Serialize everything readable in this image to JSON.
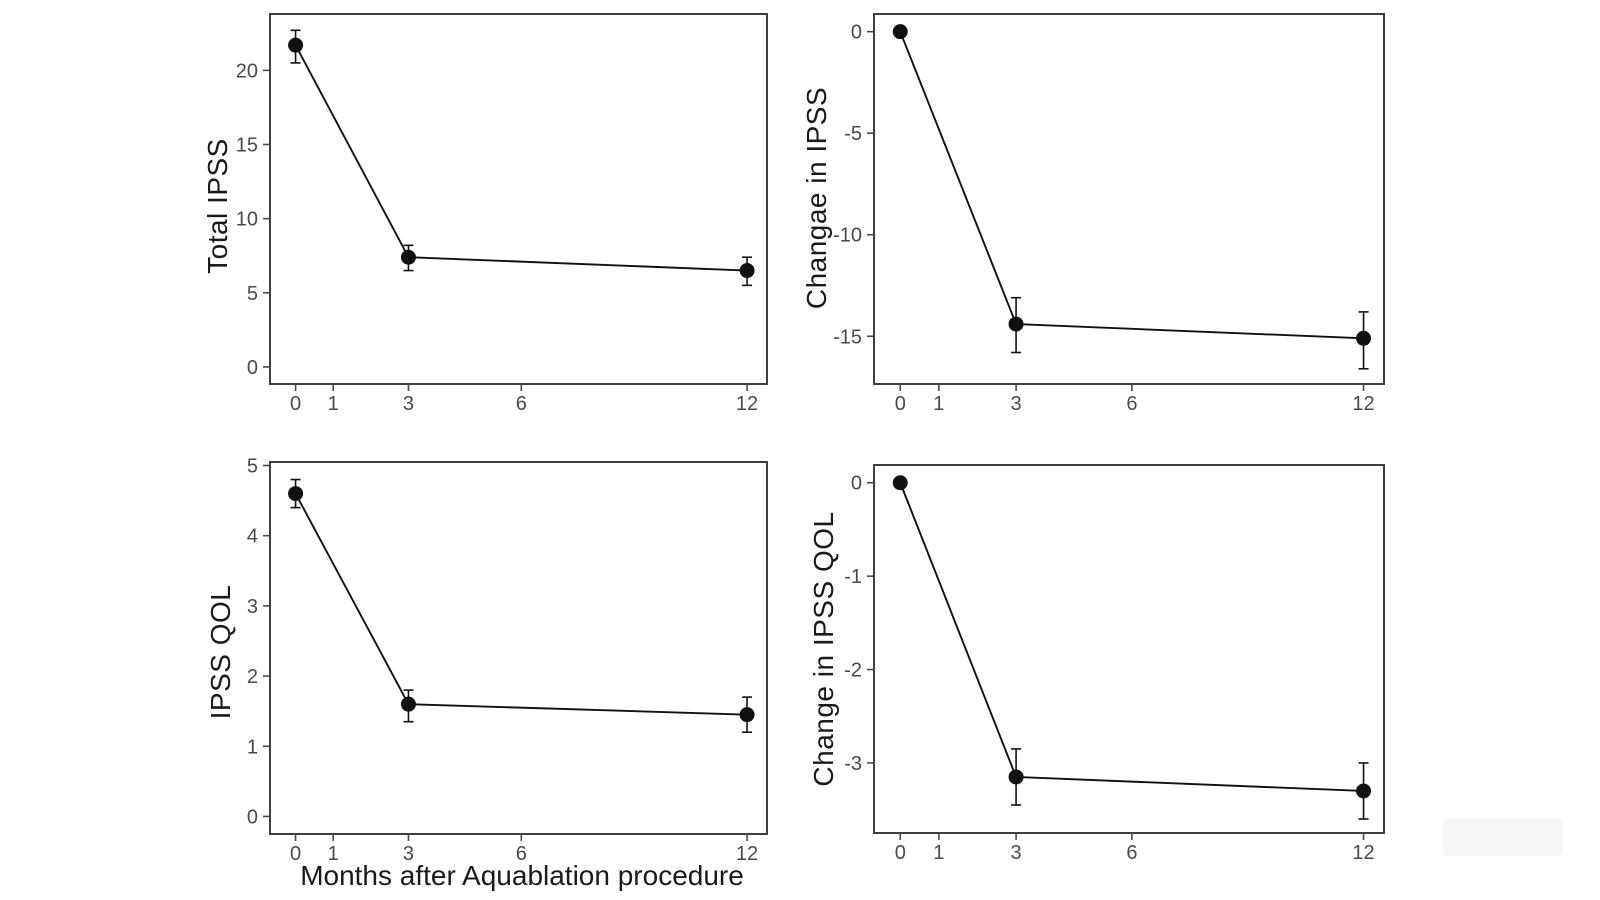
{
  "figure": {
    "background": "#ffffff",
    "ink_color": "#111111",
    "tick_color": "#4a4a4a",
    "border_color": "#3f3f3f",
    "label_color": "#1a1a1a",
    "xlabel": "Months after Aquablation procedure"
  },
  "chart_data": [
    {
      "type": "line",
      "title": "",
      "ylabel": "Total IPSS",
      "xlabel": "",
      "x": [
        0,
        3,
        12
      ],
      "values": [
        21.7,
        7.4,
        6.5
      ],
      "error_low": [
        20.5,
        6.5,
        5.5
      ],
      "error_high": [
        22.7,
        8.2,
        7.4
      ],
      "xticks": [
        0,
        1,
        3,
        6,
        12
      ],
      "yticks": [
        0,
        5,
        10,
        15,
        20
      ],
      "xlim": [
        -0.68,
        12.53
      ],
      "ylim": [
        -1.15,
        23.8
      ],
      "legend": "none",
      "grid": "off",
      "marker": "filled-circle",
      "error_bars": true
    },
    {
      "type": "line",
      "title": "",
      "ylabel": "Changae in IPSS",
      "xlabel": "",
      "x": [
        0,
        3,
        12
      ],
      "values": [
        0,
        -14.4,
        -15.1
      ],
      "error_low": [
        0,
        -15.8,
        -16.6
      ],
      "error_high": [
        0,
        -13.1,
        -13.8
      ],
      "xticks": [
        0,
        1,
        3,
        6,
        12
      ],
      "yticks": [
        0,
        -5,
        -10,
        -15
      ],
      "xlim": [
        -0.68,
        12.53
      ],
      "ylim": [
        -17.35,
        0.87
      ],
      "legend": "none",
      "grid": "off",
      "marker": "filled-circle",
      "error_bars": true
    },
    {
      "type": "line",
      "title": "",
      "ylabel": "IPSS QOL",
      "xlabel": "Months after Aquablation procedure",
      "x": [
        0,
        3,
        12
      ],
      "values": [
        4.6,
        1.6,
        1.45
      ],
      "error_low": [
        4.4,
        1.35,
        1.2
      ],
      "error_high": [
        4.8,
        1.8,
        1.7
      ],
      "xticks": [
        0,
        1,
        3,
        6,
        12
      ],
      "yticks": [
        0,
        1,
        2,
        3,
        4,
        5
      ],
      "xlim": [
        -0.68,
        12.53
      ],
      "ylim": [
        -0.25,
        5.05
      ],
      "legend": "none",
      "grid": "off",
      "marker": "filled-circle",
      "error_bars": true
    },
    {
      "type": "line",
      "title": "",
      "ylabel": "Change in IPSS QOL",
      "xlabel": "",
      "x": [
        0,
        3,
        12
      ],
      "values": [
        0,
        -3.15,
        -3.3
      ],
      "error_low": [
        0,
        -3.45,
        -3.6
      ],
      "error_high": [
        0,
        -2.85,
        -3.0
      ],
      "xticks": [
        0,
        1,
        3,
        6,
        12
      ],
      "yticks": [
        0,
        -1,
        -2,
        -3
      ],
      "xlim": [
        -0.68,
        12.53
      ],
      "ylim": [
        -3.75,
        0.19
      ],
      "legend": "none",
      "grid": "off",
      "marker": "filled-circle",
      "error_bars": true
    }
  ]
}
